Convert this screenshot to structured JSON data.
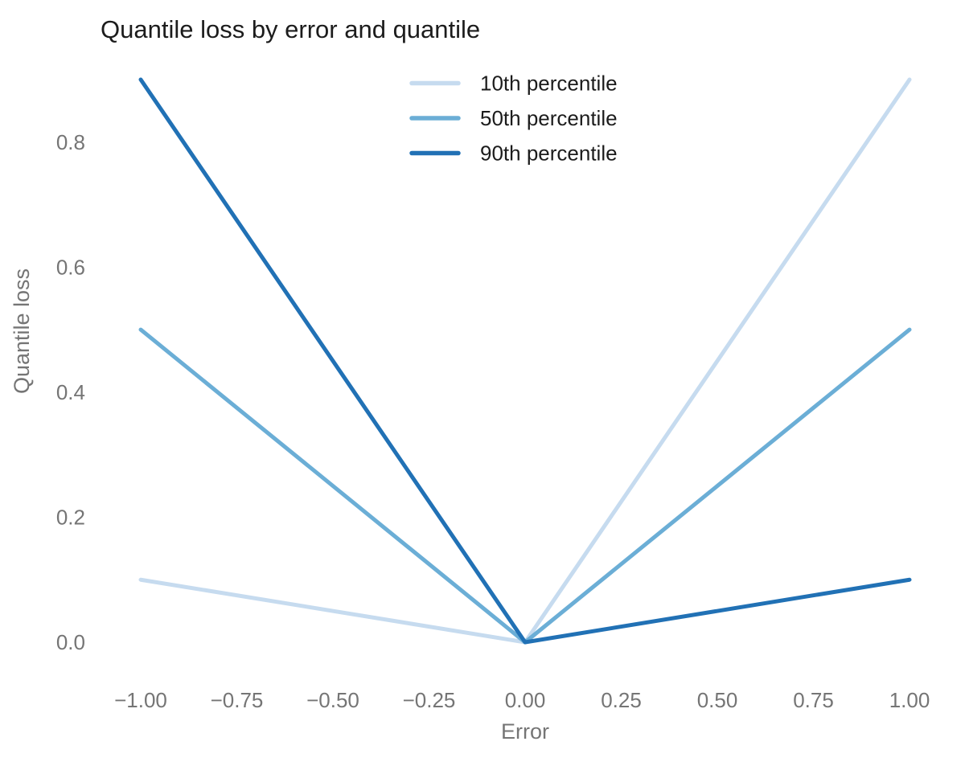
{
  "chart_data": {
    "type": "line",
    "title": "Quantile loss by error and quantile",
    "xlabel": "Error",
    "ylabel": "Quantile loss",
    "xlim": [
      -1,
      1
    ],
    "ylim": [
      0,
      0.9
    ],
    "grid": false,
    "axis_lines": false,
    "legend_position": "top-center-inside",
    "line_width": 5,
    "x": [
      -1,
      0,
      1
    ],
    "series": [
      {
        "name": "10th percentile",
        "color": "#c6dbef",
        "values": [
          0.1,
          0.0,
          0.9
        ]
      },
      {
        "name": "50th percentile",
        "color": "#6baed6",
        "values": [
          0.5,
          0.0,
          0.5
        ]
      },
      {
        "name": "90th percentile",
        "color": "#2171b5",
        "values": [
          0.9,
          0.0,
          0.1
        ]
      }
    ],
    "x_ticks": [
      {
        "value": -1.0,
        "label": "−1.00"
      },
      {
        "value": -0.75,
        "label": "−0.75"
      },
      {
        "value": -0.5,
        "label": "−0.50"
      },
      {
        "value": -0.25,
        "label": "−0.25"
      },
      {
        "value": 0.0,
        "label": "0.00"
      },
      {
        "value": 0.25,
        "label": "0.25"
      },
      {
        "value": 0.5,
        "label": "0.50"
      },
      {
        "value": 0.75,
        "label": "0.75"
      },
      {
        "value": 1.0,
        "label": "1.00"
      }
    ],
    "y_ticks": [
      {
        "value": 0.0,
        "label": "0.0"
      },
      {
        "value": 0.2,
        "label": "0.2"
      },
      {
        "value": 0.4,
        "label": "0.4"
      },
      {
        "value": 0.6,
        "label": "0.6"
      },
      {
        "value": 0.8,
        "label": "0.8"
      }
    ]
  },
  "colors": {
    "background": "#ffffff",
    "title_text": "#1c1c1c",
    "legend_text": "#1c1c1c",
    "axis_text": "#757575",
    "series_light": "#c6dbef",
    "series_medium": "#6baed6",
    "series_dark": "#2171b5"
  }
}
